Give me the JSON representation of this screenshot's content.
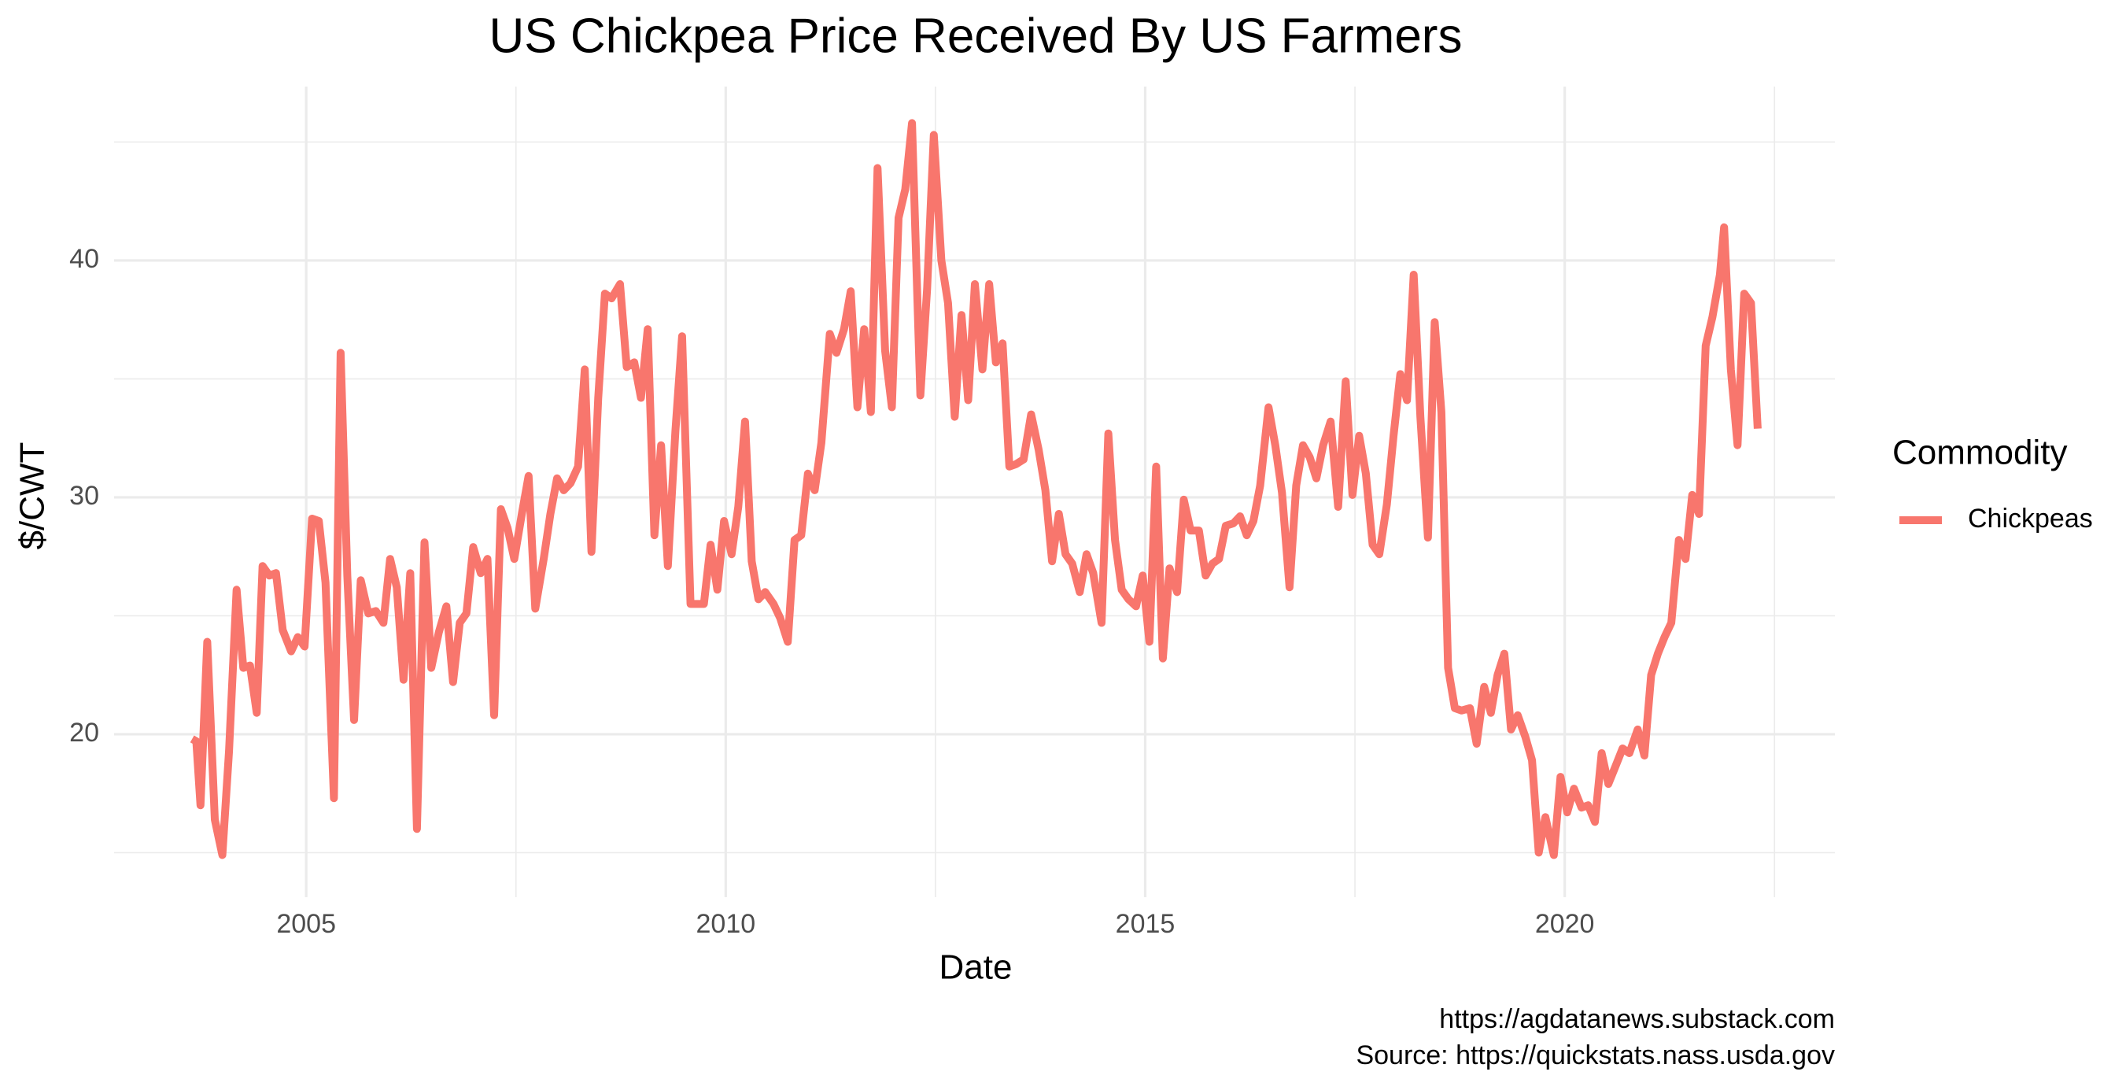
{
  "chart_data": {
    "type": "line",
    "title": "US Chickpea Price Received By US Farmers",
    "x_label": "Date",
    "y_label": "$/CWT",
    "legend_title": "Commodity",
    "legend_position": "right",
    "caption": [
      "https://agdatanews.substack.com",
      "Source: https://quickstats.nass.usda.gov"
    ],
    "grid": true,
    "minor_grid": true,
    "xlim": [
      2002.71,
      2023.22
    ],
    "xticks": [
      2005,
      2010,
      2015,
      2020
    ],
    "ylim": [
      13.12,
      47.34
    ],
    "yticks": [
      20,
      30,
      40
    ],
    "x": [
      2003.64,
      2003.69,
      2003.74,
      2003.82,
      2003.91,
      2004.0,
      2004.08,
      2004.17,
      2004.25,
      2004.33,
      2004.41,
      2004.48,
      2004.56,
      2004.64,
      2004.72,
      2004.82,
      2004.9,
      2004.98,
      2005.07,
      2005.15,
      2005.23,
      2005.33,
      2005.41,
      2005.49,
      2005.57,
      2005.65,
      2005.74,
      2005.83,
      2005.92,
      2006.0,
      2006.08,
      2006.16,
      2006.24,
      2006.32,
      2006.41,
      2006.49,
      2006.58,
      2006.67,
      2006.75,
      2006.83,
      2006.91,
      2006.99,
      2007.08,
      2007.16,
      2007.24,
      2007.32,
      2007.4,
      2007.48,
      2007.57,
      2007.65,
      2007.73,
      2007.83,
      2007.91,
      2007.99,
      2008.07,
      2008.15,
      2008.24,
      2008.32,
      2008.4,
      2008.48,
      2008.56,
      2008.64,
      2008.74,
      2008.82,
      2008.91,
      2008.99,
      2009.07,
      2009.15,
      2009.23,
      2009.31,
      2009.4,
      2009.48,
      2009.58,
      2009.66,
      2009.74,
      2009.82,
      2009.9,
      2009.98,
      2010.07,
      2010.15,
      2010.23,
      2010.31,
      2010.39,
      2010.47,
      2010.57,
      2010.65,
      2010.74,
      2010.82,
      2010.9,
      2010.98,
      2011.06,
      2011.14,
      2011.24,
      2011.32,
      2011.41,
      2011.49,
      2011.57,
      2011.65,
      2011.73,
      2011.81,
      2011.9,
      2011.98,
      2012.06,
      2012.14,
      2012.22,
      2012.32,
      2012.4,
      2012.48,
      2012.57,
      2012.65,
      2012.73,
      2012.81,
      2012.89,
      2012.97,
      2013.06,
      2013.14,
      2013.22,
      2013.3,
      2013.38,
      2013.46,
      2013.55,
      2013.64,
      2013.73,
      2013.81,
      2013.89,
      2013.97,
      2014.05,
      2014.13,
      2014.22,
      2014.3,
      2014.38,
      2014.48,
      2014.56,
      2014.64,
      2014.72,
      2014.8,
      2014.89,
      2014.97,
      2015.05,
      2015.13,
      2015.21,
      2015.29,
      2015.38,
      2015.46,
      2015.54,
      2015.64,
      2015.72,
      2015.8,
      2015.88,
      2015.96,
      2016.05,
      2016.13,
      2016.21,
      2016.29,
      2016.37,
      2016.47,
      2016.55,
      2016.63,
      2016.72,
      2016.8,
      2016.88,
      2016.96,
      2017.04,
      2017.12,
      2017.21,
      2017.3,
      2017.39,
      2017.47,
      2017.55,
      2017.63,
      2017.71,
      2017.79,
      2017.88,
      2017.96,
      2018.04,
      2018.12,
      2018.2,
      2018.28,
      2018.37,
      2018.45,
      2018.53,
      2018.61,
      2018.69,
      2018.77,
      2018.87,
      2018.95,
      2019.04,
      2019.12,
      2019.2,
      2019.28,
      2019.36,
      2019.44,
      2019.53,
      2019.61,
      2019.69,
      2019.77,
      2019.87,
      2019.95,
      2020.03,
      2020.11,
      2020.2,
      2020.28,
      2020.36,
      2020.44,
      2020.52,
      2020.6,
      2020.69,
      2020.77,
      2020.87,
      2020.95,
      2021.03,
      2021.11,
      2021.19,
      2021.27,
      2021.36,
      2021.44,
      2021.52,
      2021.6,
      2021.68,
      2021.76,
      2021.85,
      2021.9,
      2021.98,
      2022.06,
      2022.14,
      2022.22,
      2022.3
    ],
    "series": [
      {
        "name": "Chickpeas",
        "color": "#F8766D",
        "values": [
          19.8,
          19.7,
          17.0,
          23.9,
          16.4,
          14.9,
          19.3,
          26.1,
          22.8,
          22.9,
          20.9,
          27.1,
          26.7,
          26.8,
          24.4,
          23.5,
          24.1,
          23.7,
          29.1,
          29.0,
          26.4,
          17.3,
          36.1,
          26.7,
          20.6,
          26.5,
          25.1,
          25.2,
          24.7,
          27.4,
          26.2,
          22.3,
          26.8,
          16.0,
          28.1,
          22.8,
          24.3,
          25.4,
          22.2,
          24.7,
          25.1,
          27.9,
          26.8,
          27.4,
          20.8,
          29.5,
          28.7,
          27.4,
          29.3,
          30.9,
          25.3,
          27.4,
          29.3,
          30.8,
          30.3,
          30.6,
          31.3,
          35.4,
          27.7,
          34.2,
          38.6,
          38.4,
          39.0,
          35.5,
          35.7,
          34.2,
          37.1,
          28.4,
          32.2,
          27.1,
          32.8,
          36.8,
          25.5,
          25.5,
          25.5,
          28.0,
          26.1,
          29.0,
          27.6,
          29.6,
          33.2,
          27.3,
          25.7,
          26.0,
          25.5,
          24.9,
          23.9,
          28.2,
          28.4,
          31.0,
          30.3,
          32.3,
          36.9,
          36.1,
          37.1,
          38.7,
          33.8,
          37.1,
          33.6,
          43.9,
          36.2,
          33.8,
          41.8,
          43.0,
          45.8,
          34.3,
          38.8,
          45.3,
          40.0,
          38.2,
          33.4,
          37.7,
          34.1,
          39.0,
          35.4,
          39.0,
          35.7,
          36.5,
          31.3,
          31.4,
          31.6,
          33.5,
          32.0,
          30.3,
          27.3,
          29.3,
          27.6,
          27.2,
          26.0,
          27.6,
          26.8,
          24.7,
          32.7,
          28.2,
          26.1,
          25.7,
          25.4,
          26.7,
          23.9,
          31.3,
          23.2,
          27.0,
          26.0,
          29.9,
          28.6,
          28.6,
          26.7,
          27.2,
          27.4,
          28.8,
          28.9,
          29.2,
          28.4,
          29.0,
          30.5,
          33.8,
          32.2,
          30.2,
          26.2,
          30.5,
          32.2,
          31.7,
          30.8,
          32.2,
          33.2,
          29.6,
          34.9,
          30.1,
          32.6,
          31.0,
          28.0,
          27.6,
          29.7,
          32.6,
          35.2,
          34.1,
          39.4,
          33.4,
          28.3,
          37.4,
          33.6,
          22.8,
          21.1,
          21.0,
          21.1,
          19.6,
          22.0,
          20.9,
          22.5,
          23.4,
          20.2,
          20.8,
          19.9,
          18.9,
          15.0,
          16.5,
          14.9,
          18.2,
          16.7,
          17.7,
          16.9,
          17.0,
          16.3,
          19.2,
          17.9,
          18.6,
          19.4,
          19.2,
          20.2,
          19.1,
          22.5,
          23.4,
          24.1,
          24.7,
          28.2,
          27.4,
          30.1,
          29.3,
          36.4,
          37.6,
          39.4,
          41.4,
          35.4,
          32.2,
          38.6,
          38.2,
          32.9
        ]
      }
    ]
  }
}
